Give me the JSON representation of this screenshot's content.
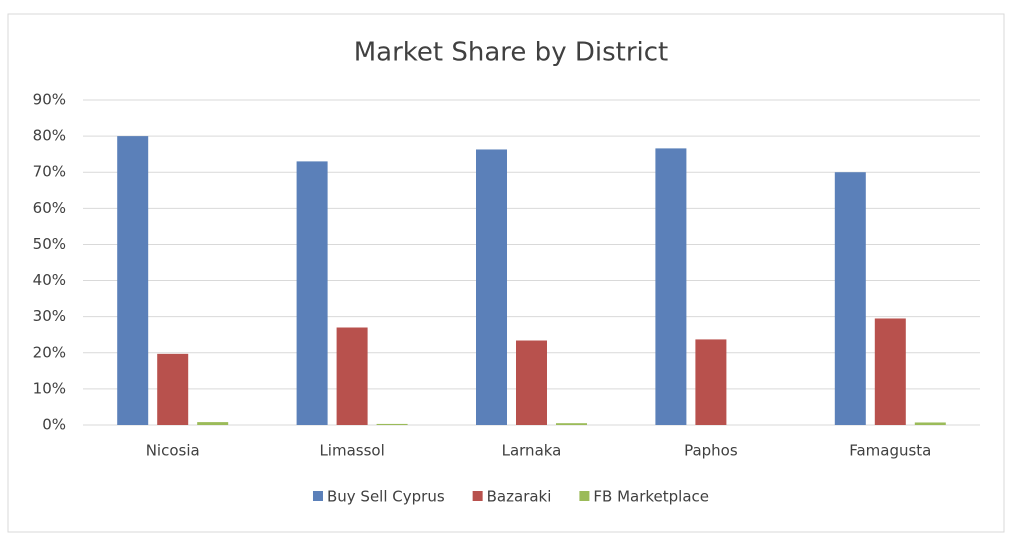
{
  "chart_data": {
    "type": "bar",
    "title": "Market Share by District",
    "categories": [
      "Nicosia",
      "Limassol",
      "Larnaka",
      "Paphos",
      "Famagusta"
    ],
    "series": [
      {
        "name": "Buy Sell Cyprus",
        "color": "#5b80b9",
        "values": [
          80,
          73,
          76.3,
          76.6,
          70
        ]
      },
      {
        "name": "Bazaraki",
        "color": "#b8514d",
        "values": [
          19.7,
          27,
          23.4,
          23.7,
          29.5
        ]
      },
      {
        "name": "FB Marketplace",
        "color": "#9bbb59",
        "values": [
          0.8,
          0.3,
          0.5,
          0,
          0.7
        ]
      }
    ],
    "ylim": [
      0,
      90
    ],
    "yticks": [
      {
        "value": 0,
        "label": "0%"
      },
      {
        "value": 10,
        "label": "10%"
      },
      {
        "value": 20,
        "label": "20%"
      },
      {
        "value": 30,
        "label": "30%"
      },
      {
        "value": 40,
        "label": "40%"
      },
      {
        "value": 50,
        "label": "50%"
      },
      {
        "value": 60,
        "label": "60%"
      },
      {
        "value": 70,
        "label": "70%"
      },
      {
        "value": 80,
        "label": "80%"
      },
      {
        "value": 90,
        "label": "90%"
      }
    ],
    "grid": true,
    "legend": "bottom"
  }
}
